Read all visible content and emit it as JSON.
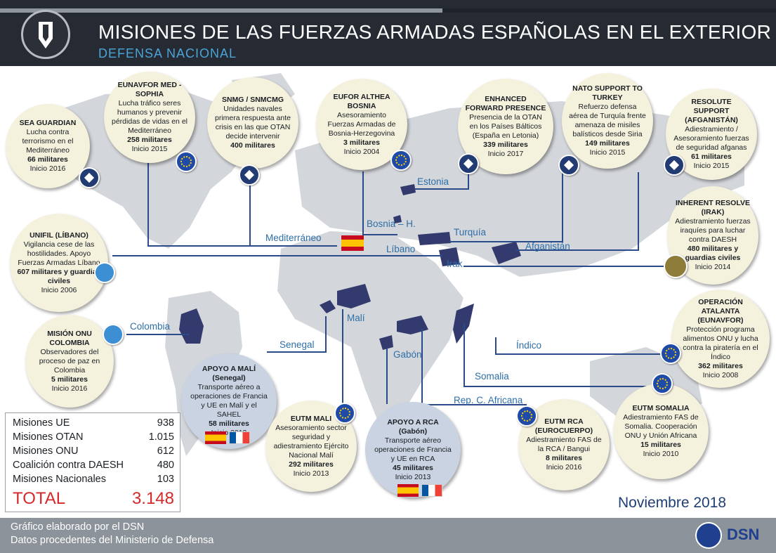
{
  "header": {
    "title": "MISIONES DE LAS FUERZAS ARMADAS ESPAÑOLAS EN EL EXTERIOR",
    "subtitle": "DEFENSA NACIONAL"
  },
  "missions": {
    "sea_guardian": {
      "title": "SEA GUARDIAN",
      "text": "Lucha contra terrorismo en el Mediterráneo",
      "mil": "66 militares",
      "year": "Inicio 2016"
    },
    "eunavfor": {
      "title": "EUNAVFOR MED - SOPHIA",
      "text": "Lucha tráfico seres humanos y prevenir pérdidas de vidas en el Mediterráneo",
      "mil": "258 militares",
      "year": "Inicio 2015"
    },
    "snmg": {
      "title": "SNMG / SNMCMG",
      "text": "Unidades navales primera respuesta ante crisis en las que OTAN decide intervenir",
      "mil": "400 militares",
      "year": ""
    },
    "eufor": {
      "title": "EUFOR ALTHEA BOSNIA",
      "text": "Asesoramiento Fuerzas Armadas de Bosnia-Herzegovina",
      "mil": "3 militares",
      "year": "Inicio 2004"
    },
    "efp": {
      "title": "ENHANCED FORWARD PRESENCE",
      "text": "Presencia de la OTAN en los Países Bálticos (España en Letonia)",
      "mil": "339 militares",
      "year": "Inicio 2017"
    },
    "nato_turkey": {
      "title": "NATO SUPPORT TO TURKEY",
      "text": "Refuerzo defensa aérea de Turquía frente amenaza de misiles balísticos desde Siria",
      "mil": "149 militares",
      "year": "Inicio 2015"
    },
    "resolute": {
      "title": "RESOLUTE SUPPORT (AFGANISTÁN)",
      "text": "Adiestramiento / Asesoramiento fuerzas de seguridad afganas",
      "mil": "61 militares",
      "year": "Inicio 2015"
    },
    "inherent": {
      "title": "INHERENT RESOLVE (IRAK)",
      "text": "Adiestramiento fuerzas iraquíes para luchar contra DAESH",
      "mil": "480 militares y guardias civiles",
      "year": "Inicio 2014"
    },
    "unifil": {
      "title": "UNIFIL (LÍBANO)",
      "text": "Vigilancia cese de las hostilidades. Apoyo Fuerzas Armadas Líbano",
      "mil": "607 militares y guardias civiles",
      "year": "Inicio 2006"
    },
    "colombia": {
      "title": "MISIÓN ONU COLOMBIA",
      "text": "Observadores del proceso de paz en Colombia",
      "mil": "5 militares",
      "year": "Inicio 2016"
    },
    "apoyo_mali": {
      "title": "APOYO A MALÍ (Senegal)",
      "text": "Transporte aéreo a operaciones de Francia y UE en Malí y el SAHEL",
      "mil": "58 militares",
      "year": "Inicio 2013"
    },
    "eutm_mali": {
      "title": "EUTM MALI",
      "text": "Asesoramiento sector seguridad y adiestramiento Ejército Nacional Malí",
      "mil": "292 militares",
      "year": "Inicio 2013"
    },
    "apoyo_rca": {
      "title": "APOYO A RCA (Gabón)",
      "text": "Transporte aéreo operaciones de Francia y UE en RCA",
      "mil": "45 militares",
      "year": "Inicio 2013"
    },
    "eutm_rca": {
      "title": "EUTM RCA (EUROCUERPO)",
      "text": "Adiestramiento FAS de la RCA / Bangui",
      "mil": "8 militares",
      "year": "Inicio 2016"
    },
    "eutm_somalia": {
      "title": "EUTM SOMALIA",
      "text": "Adiestramiento FAS de Somalia. Cooperación ONU y Unión Africana",
      "mil": "15 militares",
      "year": "Inicio 2010"
    },
    "atalanta": {
      "title": "OPERACIÓN ATALANTA (EUNAVFOR)",
      "text": "Protección programa alimentos ONU y lucha contra la piratería en el Índico",
      "mil": "362 militares",
      "year": "Inicio 2008"
    }
  },
  "regions": {
    "mediterraneo": "Mediterráneo",
    "bosnia": "Bosnia – H.",
    "estonia": "Estonia",
    "turquia": "Turquía",
    "libano": "Líbano",
    "afganistan": "Afganistán",
    "irak": "Irak",
    "colombia": "Colombia",
    "senegal": "Senegal",
    "mali": "Malí",
    "gabon": "Gabón",
    "indico": "Índico",
    "somalia": "Somalia",
    "rca": "Rep. C. Africana"
  },
  "summary": {
    "rows": [
      {
        "label": "Misiones UE",
        "value": "938"
      },
      {
        "label": "Misiones OTAN",
        "value": "1.015"
      },
      {
        "label": "Misiones ONU",
        "value": "612"
      },
      {
        "label": "Coalición contra DAESH",
        "value": "480"
      },
      {
        "label": "Misiones Nacionales",
        "value": "103"
      }
    ],
    "total_label": "TOTAL",
    "total_value": "3.148"
  },
  "date": "Noviembre 2018",
  "footer": {
    "line1": "Gráfico elaborado por el DSN",
    "line2": "Datos procedentes del Ministerio de Defensa",
    "brand": "DSN"
  },
  "colors": {
    "header": "#262b33",
    "accent": "#4aa4d8",
    "line": "#2a4a8a",
    "total": "#d22a2a"
  }
}
